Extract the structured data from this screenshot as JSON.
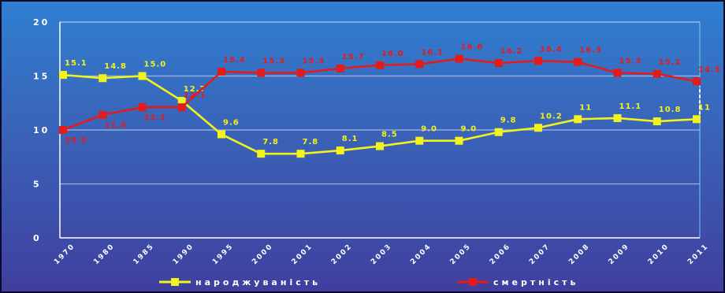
{
  "chart_data": {
    "type": "line",
    "title": "",
    "xlabel": "",
    "ylabel": "",
    "ylim": [
      0,
      20
    ],
    "yticks": [
      "0",
      "5",
      "10",
      "15",
      "20"
    ],
    "grid": true,
    "legend_position": "bottom",
    "x": [
      "1970",
      "1980",
      "1985",
      "1990",
      "1995",
      "2000",
      "2001",
      "2002",
      "2003",
      "2004",
      "2005",
      "2006",
      "2007",
      "2008",
      "2009",
      "2010",
      "2011"
    ],
    "series": [
      {
        "name": "народжуваність",
        "color": "#f2f21c",
        "values": [
          15.1,
          14.8,
          15.0,
          12.7,
          9.6,
          7.8,
          7.8,
          8.1,
          8.5,
          9.0,
          9.0,
          9.8,
          10.2,
          11.0,
          11.1,
          10.8,
          11.0
        ],
        "labels": [
          "15.1",
          "14.8",
          "15.0",
          "12.7",
          "9.6",
          "7.8",
          "7.8",
          "8.1",
          "8.5",
          "9.0",
          "9.0",
          "9.8",
          "10.2",
          "11",
          "11.1",
          "10.8",
          "11"
        ]
      },
      {
        "name": "смертність",
        "color": "#e41b1b",
        "values": [
          10.0,
          11.4,
          12.1,
          12.1,
          15.4,
          15.3,
          15.3,
          15.7,
          16.0,
          16.1,
          16.6,
          16.2,
          16.4,
          16.3,
          15.3,
          15.2,
          14.5
        ],
        "labels": [
          "10.0",
          "11.4",
          "12.1",
          "12.1",
          "15.4",
          "15.3",
          "15.3",
          "15.7",
          "16.0",
          "16.1",
          "16.6",
          "16.2",
          "16.4",
          "16.3",
          "15.3",
          "15.2",
          "14.5"
        ]
      }
    ]
  }
}
